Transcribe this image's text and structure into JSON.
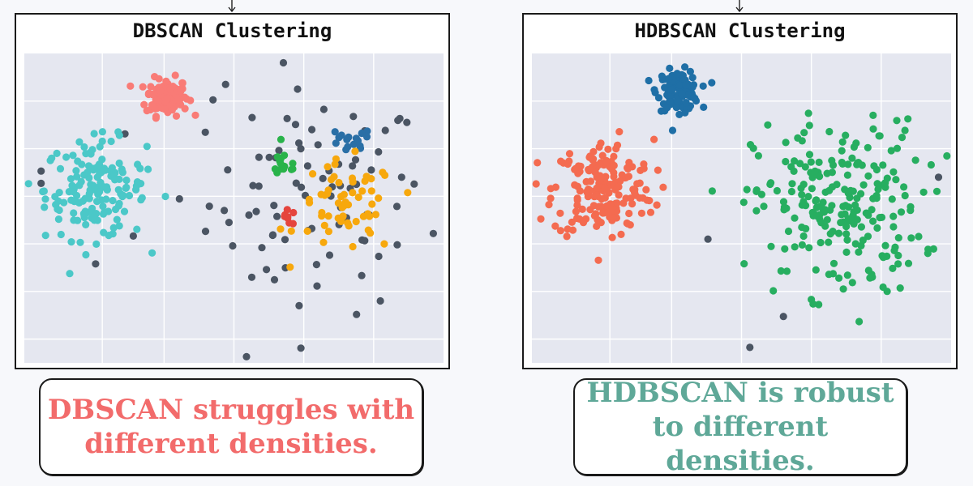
{
  "colors": {
    "background": "#f7f8fb",
    "plot_bg": "#e5e7f0",
    "grid": "#ffffff",
    "noise": "#4b5563",
    "left_text": "#f26b6b",
    "right_text": "#5fa898"
  },
  "callouts": {
    "left": {
      "line1": "DBSCAN struggles with",
      "line2": "different densities."
    },
    "right": {
      "line1": "HDBSCAN is robust",
      "line2": "to different densities."
    }
  },
  "chart_data": [
    {
      "type": "scatter",
      "title": "DBSCAN Clustering",
      "xlim": [
        0,
        100
      ],
      "ylim": [
        0,
        100
      ],
      "grid": true,
      "clusters": [
        {
          "color": "#f97b76",
          "center": [
            34,
            86
          ],
          "spread": [
            2.5,
            3.0
          ],
          "count": 120
        },
        {
          "color": "#4bc8c8",
          "center": [
            17,
            56
          ],
          "spread": [
            6.0,
            8.0
          ],
          "count": 160
        },
        {
          "color": "#29b34a",
          "center": [
            62,
            64
          ],
          "spread": [
            1.8,
            2.5
          ],
          "count": 14
        },
        {
          "color": "#e5443d",
          "center": [
            63,
            47
          ],
          "spread": [
            1.2,
            1.2
          ],
          "count": 8
        },
        {
          "color": "#2a6fa6",
          "center": [
            77,
            71
          ],
          "spread": [
            3.0,
            2.5
          ],
          "count": 16
        },
        {
          "color": "#f7a80d",
          "center": [
            77,
            50
          ],
          "spread": [
            6.0,
            7.5
          ],
          "count": 60
        }
      ],
      "noise": {
        "color": "#4b5563",
        "center": [
          70,
          52
        ],
        "spread": [
          13,
          18
        ],
        "count": 80,
        "extra": [
          [
            4,
            62
          ],
          [
            4,
            58
          ],
          [
            26,
            41
          ],
          [
            37,
            53
          ],
          [
            24,
            74
          ],
          [
            17,
            32
          ],
          [
            53,
            2
          ],
          [
            90,
            60
          ],
          [
            45,
            85
          ],
          [
            48,
            90
          ]
        ]
      }
    },
    {
      "type": "scatter",
      "title": "HDBSCAN Clustering",
      "xlim": [
        0,
        100
      ],
      "ylim": [
        0,
        100
      ],
      "grid": true,
      "clusters": [
        {
          "color": "#1f6fa6",
          "center": [
            35,
            88
          ],
          "spread": [
            2.5,
            3.2
          ],
          "count": 110
        },
        {
          "color": "#f46b50",
          "center": [
            17,
            56
          ],
          "spread": [
            6.0,
            8.0
          ],
          "count": 190
        },
        {
          "color": "#27ae60",
          "center": [
            73,
            50
          ],
          "spread": [
            10,
            14
          ],
          "count": 230
        }
      ],
      "noise": {
        "color": "#4b5563",
        "center": [
          0,
          0
        ],
        "spread": [
          0,
          0
        ],
        "count": 0,
        "extra": [
          [
            42,
            40
          ],
          [
            60,
            15
          ],
          [
            52,
            5
          ],
          [
            97,
            60
          ]
        ]
      }
    }
  ]
}
